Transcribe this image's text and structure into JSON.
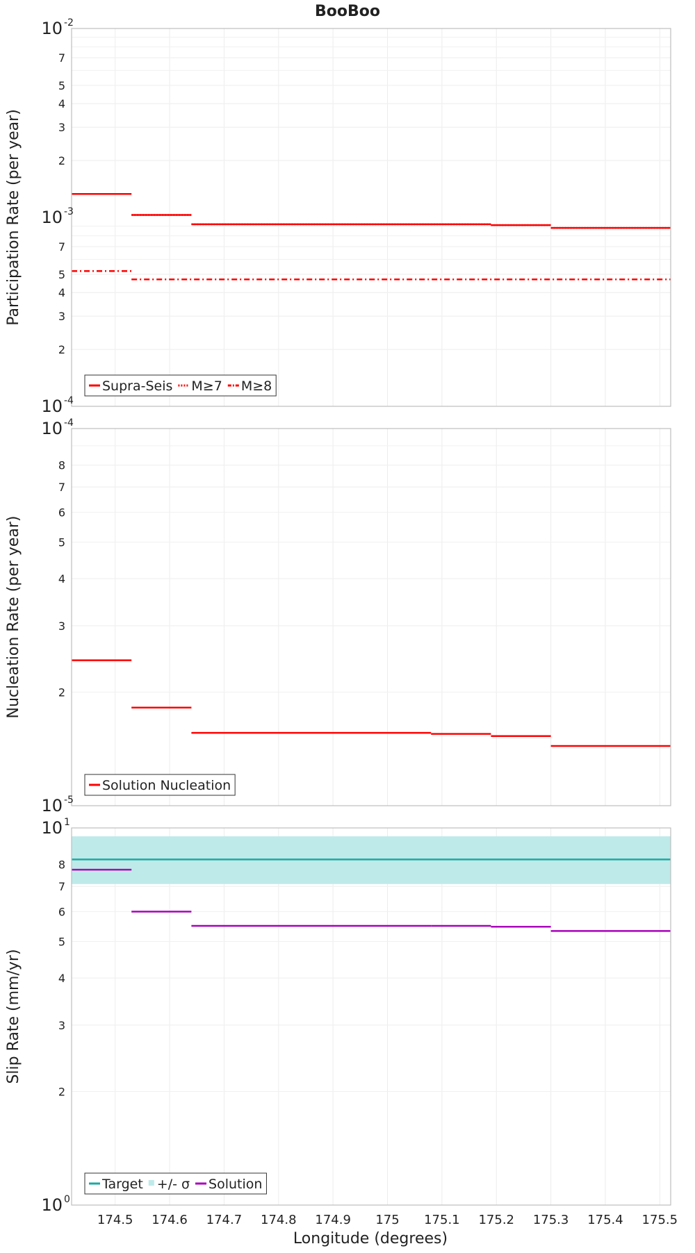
{
  "title": "BooBoo",
  "xlabel": "Longitude (degrees)",
  "chart_data": [
    {
      "type": "line",
      "name": "participation",
      "ylabel": "Participation Rate (per year)",
      "yscale": "log",
      "ylim": [
        0.0001,
        0.01
      ],
      "xlim": [
        174.42,
        175.52
      ],
      "y_major_ticks": [
        {
          "base": "10",
          "exp": "-2",
          "value": 0.01
        },
        {
          "base": "10",
          "exp": "-3",
          "value": 0.001
        },
        {
          "base": "10",
          "exp": "-4",
          "value": 0.0001
        }
      ],
      "y_minor_ticks": [
        {
          "label": "7",
          "value": 0.007
        },
        {
          "label": "5",
          "value": 0.005
        },
        {
          "label": "4",
          "value": 0.004
        },
        {
          "label": "3",
          "value": 0.003
        },
        {
          "label": "2",
          "value": 0.002
        },
        {
          "label": "7",
          "value": 0.0007
        },
        {
          "label": "5",
          "value": 0.0005
        },
        {
          "label": "4",
          "value": 0.0004
        },
        {
          "label": "3",
          "value": 0.0003
        },
        {
          "label": "2",
          "value": 0.0002
        }
      ],
      "series": [
        {
          "name": "Supra-Seis",
          "color": "#ff0000",
          "style": "solid",
          "segments": [
            [
              174.42,
              174.53,
              0.00133
            ],
            [
              174.53,
              174.64,
              0.00103
            ],
            [
              174.64,
              175.08,
              0.00092
            ],
            [
              175.08,
              175.19,
              0.00092
            ],
            [
              175.19,
              175.3,
              0.00091
            ],
            [
              175.3,
              175.52,
              0.00088
            ]
          ]
        },
        {
          "name": "M≥7",
          "color": "#ff0000",
          "style": "dotted",
          "segments": [
            [
              174.42,
              174.53,
              0.00133
            ],
            [
              174.53,
              174.64,
              0.00103
            ],
            [
              174.64,
              175.08,
              0.00092
            ],
            [
              175.08,
              175.19,
              0.00092
            ],
            [
              175.19,
              175.3,
              0.00091
            ],
            [
              175.3,
              175.52,
              0.00088
            ]
          ]
        },
        {
          "name": "M≥8",
          "color": "#ff0000",
          "style": "dashdot",
          "segments": [
            [
              174.42,
              174.53,
              0.00052
            ],
            [
              174.53,
              175.52,
              0.00047
            ]
          ]
        }
      ],
      "legend": [
        {
          "label": "Supra-Seis",
          "color": "#ff0000",
          "style": "solid"
        },
        {
          "label": "M≥7",
          "color": "#ff0000",
          "style": "dotted"
        },
        {
          "label": "M≥8",
          "color": "#ff0000",
          "style": "dashdot"
        }
      ]
    },
    {
      "type": "line",
      "name": "nucleation",
      "ylabel": "Nucleation Rate (per year)",
      "yscale": "log",
      "ylim": [
        1e-05,
        0.0001
      ],
      "xlim": [
        174.42,
        175.52
      ],
      "y_major_ticks": [
        {
          "base": "10",
          "exp": "-4",
          "value": 0.0001
        },
        {
          "base": "10",
          "exp": "-5",
          "value": 1e-05
        }
      ],
      "y_minor_ticks": [
        {
          "label": "8",
          "value": 8e-05
        },
        {
          "label": "7",
          "value": 7e-05
        },
        {
          "label": "6",
          "value": 6e-05
        },
        {
          "label": "5",
          "value": 5e-05
        },
        {
          "label": "4",
          "value": 4e-05
        },
        {
          "label": "3",
          "value": 3e-05
        },
        {
          "label": "2",
          "value": 2e-05
        }
      ],
      "series": [
        {
          "name": "Solution Nucleation",
          "color": "#ff0000",
          "style": "solid",
          "segments": [
            [
              174.42,
              174.53,
              2.43e-05
            ],
            [
              174.53,
              174.64,
              1.82e-05
            ],
            [
              174.64,
              175.08,
              1.56e-05
            ],
            [
              175.08,
              175.19,
              1.55e-05
            ],
            [
              175.19,
              175.3,
              1.53e-05
            ],
            [
              175.3,
              175.52,
              1.44e-05
            ]
          ]
        }
      ],
      "legend": [
        {
          "label": "Solution Nucleation",
          "color": "#ff0000",
          "style": "solid"
        }
      ]
    },
    {
      "type": "line",
      "name": "slip",
      "ylabel": "Slip Rate (mm/yr)",
      "yscale": "log",
      "ylim": [
        1,
        10
      ],
      "xlim": [
        174.42,
        175.52
      ],
      "y_major_ticks": [
        {
          "base": "10",
          "exp": "1",
          "value": 10
        },
        {
          "base": "10",
          "exp": "0",
          "value": 1
        }
      ],
      "y_minor_ticks": [
        {
          "label": "8",
          "value": 8
        },
        {
          "label": "7",
          "value": 7
        },
        {
          "label": "6",
          "value": 6
        },
        {
          "label": "5",
          "value": 5
        },
        {
          "label": "4",
          "value": 4
        },
        {
          "label": "3",
          "value": 3
        },
        {
          "label": "2",
          "value": 2
        }
      ],
      "band": {
        "name": "+/- σ",
        "color": "#bfeaea",
        "low": 7.1,
        "high": 9.5
      },
      "series": [
        {
          "name": "Target",
          "color": "#1aaaa0",
          "style": "solid",
          "segments": [
            [
              174.42,
              175.52,
              8.25
            ]
          ]
        },
        {
          "name": "Solution",
          "color": "#aa00bb",
          "style": "solid",
          "segments": [
            [
              174.42,
              174.53,
              7.75
            ],
            [
              174.53,
              174.64,
              6.0
            ],
            [
              174.64,
              175.08,
              5.5
            ],
            [
              175.08,
              175.19,
              5.5
            ],
            [
              175.19,
              175.3,
              5.47
            ],
            [
              175.3,
              175.52,
              5.33
            ]
          ]
        }
      ],
      "legend": [
        {
          "label": "Target",
          "color": "#1aaaa0",
          "style": "solid"
        },
        {
          "label": "+/- σ",
          "color": "#bfeaea",
          "style": "box"
        },
        {
          "label": "Solution",
          "color": "#aa00bb",
          "style": "solid"
        }
      ]
    }
  ],
  "x_ticks": [
    "174.5",
    "174.6",
    "174.7",
    "174.8",
    "174.9",
    "175",
    "175.1",
    "175.2",
    "175.3",
    "175.4",
    "175.5"
  ],
  "x_tick_values": [
    174.5,
    174.6,
    174.7,
    174.8,
    174.9,
    175.0,
    175.1,
    175.2,
    175.3,
    175.4,
    175.5
  ]
}
